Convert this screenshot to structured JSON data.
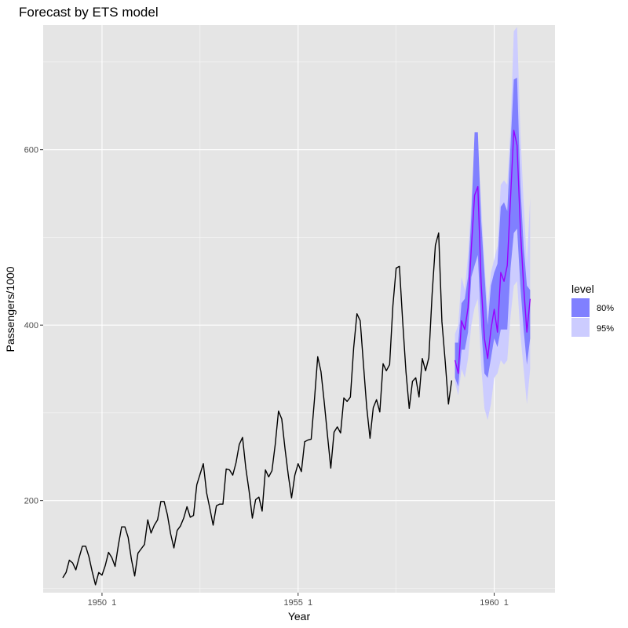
{
  "chart_data": {
    "type": "line",
    "title": "Forecast by ETS model",
    "xlabel": "Year",
    "ylabel": "Passengers/1000",
    "xlim": [
      1948.5,
      1961.55
    ],
    "ylim": [
      95,
      742
    ],
    "x_ticks": [
      {
        "value": 1950,
        "label": "1950  1"
      },
      {
        "value": 1955,
        "label": "1955  1"
      },
      {
        "value": 1960,
        "label": "1960  1"
      }
    ],
    "y_ticks": [
      {
        "value": 200,
        "label": "200"
      },
      {
        "value": 400,
        "label": "400"
      },
      {
        "value": 600,
        "label": "600"
      }
    ],
    "grid": true,
    "legend": {
      "title": "level",
      "position": "right",
      "items": [
        {
          "label": "80%",
          "color": "#8080ff"
        },
        {
          "label": "95%",
          "color": "#ccccff"
        }
      ]
    },
    "colors": {
      "panel_background": "#e5e5e5",
      "grid_major": "#ffffff",
      "actual_line": "#000000",
      "forecast_line": "#9900ff",
      "band_80": "#8080ff",
      "band_95": "#ccccff"
    },
    "history": {
      "start": 1949,
      "frequency": 12,
      "values": [
        112,
        118,
        132,
        129,
        121,
        135,
        148,
        148,
        136,
        119,
        104,
        118,
        115,
        126,
        141,
        135,
        125,
        149,
        170,
        170,
        158,
        133,
        114,
        140,
        145,
        150,
        178,
        163,
        172,
        178,
        199,
        199,
        184,
        162,
        146,
        166,
        171,
        180,
        193,
        181,
        183,
        218,
        230,
        242,
        209,
        191,
        172,
        194,
        196,
        196,
        236,
        235,
        229,
        243,
        264,
        272,
        237,
        211,
        180,
        201,
        204,
        188,
        235,
        227,
        234,
        264,
        302,
        293,
        259,
        229,
        203,
        229,
        242,
        233,
        267,
        269,
        270,
        315,
        364,
        347,
        312,
        274,
        237,
        278,
        284,
        277,
        317,
        313,
        318,
        374,
        413,
        405,
        355,
        306,
        271,
        306,
        315,
        301,
        356,
        348,
        355,
        422,
        465,
        467,
        404,
        347,
        305,
        336,
        340,
        318,
        362,
        348,
        363,
        435,
        491,
        505,
        404,
        359,
        310,
        337
      ]
    },
    "forecast": {
      "start": 1959,
      "frequency": 12,
      "mean": [
        360,
        345,
        405,
        395,
        420,
        488,
        548,
        558,
        448,
        385,
        362,
        395,
        418,
        392,
        460,
        450,
        468,
        545,
        622,
        605,
        510,
        445,
        392,
        430
      ],
      "lo80": [
        340,
        330,
        372,
        372,
        392,
        455,
        468,
        480,
        400,
        345,
        340,
        362,
        385,
        375,
        395,
        395,
        395,
        465,
        505,
        510,
        445,
        395,
        355,
        385
      ],
      "hi80": [
        380,
        380,
        425,
        430,
        455,
        525,
        620,
        620,
        520,
        460,
        400,
        445,
        460,
        470,
        535,
        540,
        530,
        605,
        680,
        682,
        560,
        490,
        445,
        440
      ],
      "lo95": [
        335,
        320,
        350,
        340,
        362,
        400,
        420,
        430,
        355,
        305,
        292,
        310,
        340,
        345,
        360,
        355,
        360,
        410,
        445,
        450,
        390,
        350,
        310,
        350
      ],
      "hi95": [
        390,
        400,
        455,
        440,
        480,
        540,
        600,
        605,
        540,
        470,
        420,
        460,
        475,
        490,
        560,
        565,
        560,
        625,
        735,
        740,
        620,
        540,
        470,
        545
      ]
    }
  }
}
